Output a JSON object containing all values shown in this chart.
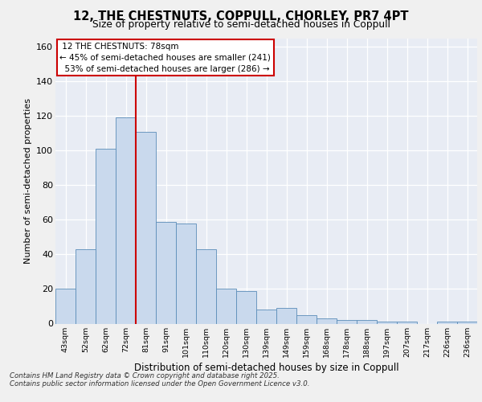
{
  "title_line1": "12, THE CHESTNUTS, COPPULL, CHORLEY, PR7 4PT",
  "title_line2": "Size of property relative to semi-detached houses in Coppull",
  "xlabel": "Distribution of semi-detached houses by size in Coppull",
  "ylabel": "Number of semi-detached properties",
  "categories": [
    "43sqm",
    "52sqm",
    "62sqm",
    "72sqm",
    "81sqm",
    "91sqm",
    "101sqm",
    "110sqm",
    "120sqm",
    "130sqm",
    "139sqm",
    "149sqm",
    "159sqm",
    "168sqm",
    "178sqm",
    "188sqm",
    "197sqm",
    "207sqm",
    "217sqm",
    "226sqm",
    "236sqm"
  ],
  "values": [
    20,
    43,
    101,
    119,
    111,
    59,
    58,
    43,
    20,
    19,
    8,
    9,
    5,
    3,
    2,
    2,
    1,
    1,
    0,
    1,
    1
  ],
  "bar_color": "#c9d9ed",
  "bar_edge_color": "#5b8db8",
  "vline_x_index": 3.5,
  "annotation_box_color": "#ffffff",
  "annotation_box_edge": "#cc0000",
  "vline_color": "#cc0000",
  "ylim": [
    0,
    165
  ],
  "yticks": [
    0,
    20,
    40,
    60,
    80,
    100,
    120,
    140,
    160
  ],
  "background_color": "#e8ecf4",
  "property_label": "12 THE CHESTNUTS: 78sqm",
  "pct_smaller": 45,
  "n_smaller": 241,
  "pct_larger": 53,
  "n_larger": 286,
  "footer1": "Contains HM Land Registry data © Crown copyright and database right 2025.",
  "footer2": "Contains public sector information licensed under the Open Government Licence v3.0."
}
